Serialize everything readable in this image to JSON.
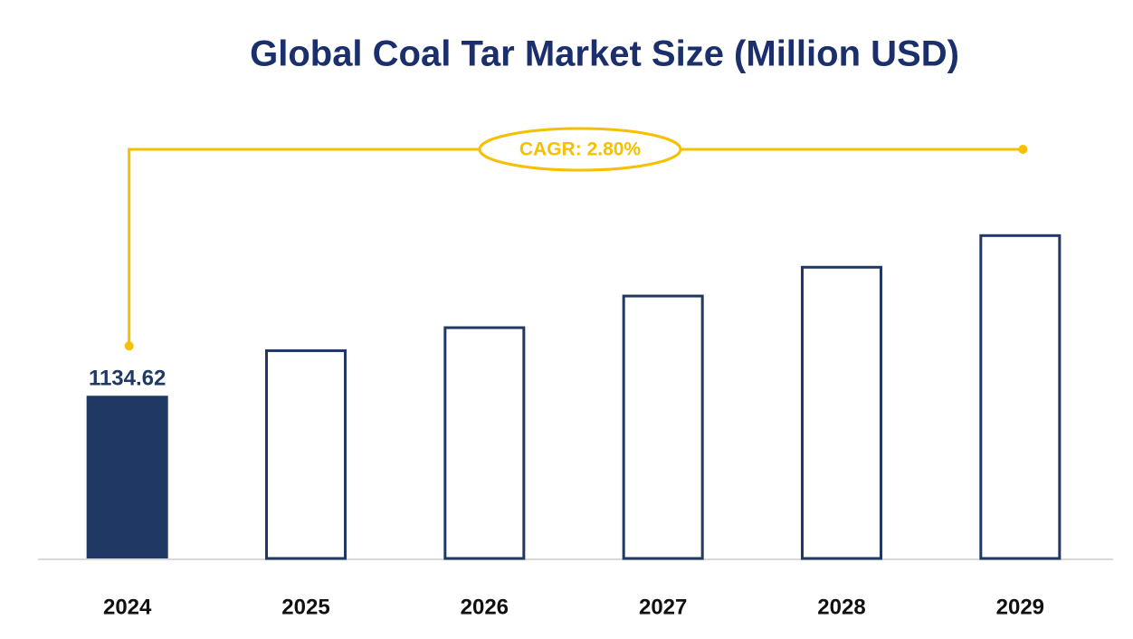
{
  "chart_data": {
    "type": "bar",
    "title": "Global Coal Tar Market Size (Million USD)",
    "annotation": "CAGR: 2.80%",
    "categories": [
      "2024",
      "2025",
      "2026",
      "2027",
      "2028",
      "2029"
    ],
    "values": [
      1134.62,
      1183,
      1207,
      1240,
      1270,
      1303
    ],
    "color": "#1f3864",
    "annotation_color": "#f5c000",
    "ylim": [
      965,
      1400
    ]
  }
}
